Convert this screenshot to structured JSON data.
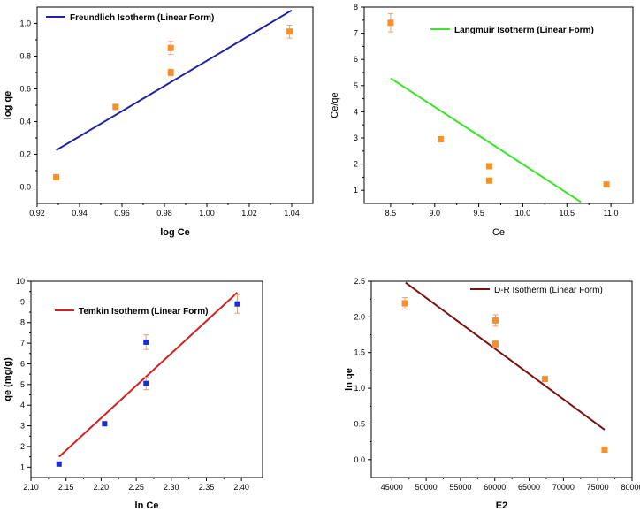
{
  "chart_data": [
    {
      "type": "scatter",
      "title": "",
      "xlabel": "log Ce",
      "ylabel": "log qe",
      "xlim": [
        0.92,
        1.05
      ],
      "ylim": [
        -0.1,
        1.1
      ],
      "x_ticks": [
        "0.92",
        "0.94",
        "0.96",
        "0.98",
        "1.00",
        "1.02",
        "1.04"
      ],
      "y_ticks": [
        "0.0",
        "0.2",
        "0.4",
        "0.6",
        "0.8",
        "1.0"
      ],
      "legend": "Freundlich Isotherm (Linear Form)",
      "legend_position": "top-left",
      "line_color": "#1f22a0",
      "marker_color": "#f5902a",
      "fit_line": {
        "x": [
          0.929,
          1.04
        ],
        "y": [
          0.225,
          1.08
        ]
      },
      "points": [
        {
          "x": 0.929,
          "y": 0.06,
          "err": 0.0
        },
        {
          "x": 0.957,
          "y": 0.49,
          "err": 0.015
        },
        {
          "x": 0.983,
          "y": 0.7,
          "err": 0.02
        },
        {
          "x": 0.983,
          "y": 0.85,
          "err": 0.04
        },
        {
          "x": 1.039,
          "y": 0.95,
          "err": 0.04
        }
      ]
    },
    {
      "type": "scatter",
      "title": "",
      "xlabel": "Ce",
      "ylabel": "Ce/qe",
      "xlim": [
        8.2,
        11.25
      ],
      "ylim": [
        0.5,
        8.0
      ],
      "x_ticks": [
        "8.5",
        "9.0",
        "9.5",
        "10.0",
        "10.5",
        "11.0"
      ],
      "y_ticks": [
        "1",
        "2",
        "3",
        "4",
        "5",
        "6",
        "7",
        "8"
      ],
      "legend": "Langmuir Isotherm (Linear Form)",
      "legend_position": "top-right",
      "line_color": "#3ce42c",
      "marker_color": "#f5902a",
      "fit_line": {
        "x": [
          8.5,
          10.66
        ],
        "y": [
          5.28,
          0.55
        ]
      },
      "points": [
        {
          "x": 8.5,
          "y": 7.4,
          "err": 0.35
        },
        {
          "x": 9.07,
          "y": 2.95,
          "err": 0.1
        },
        {
          "x": 9.62,
          "y": 1.92,
          "err": 0.06
        },
        {
          "x": 9.62,
          "y": 1.37,
          "err": 0.06
        },
        {
          "x": 10.95,
          "y": 1.22,
          "err": 0.0
        }
      ]
    },
    {
      "type": "scatter",
      "title": "",
      "xlabel": "ln Ce",
      "ylabel": "qe (mg/g)",
      "xlim": [
        2.1,
        2.43
      ],
      "ylim": [
        0.5,
        10.0
      ],
      "x_ticks": [
        "2.10",
        "2.15",
        "2.20",
        "2.25",
        "2.30",
        "2.35",
        "2.40"
      ],
      "y_ticks": [
        "1",
        "2",
        "3",
        "4",
        "5",
        "6",
        "7",
        "8",
        "9",
        "10"
      ],
      "legend": "Temkin Isotherm (Linear Form)",
      "legend_position": "top-left",
      "line_color": "#d42020",
      "marker_color": "#1a2fc8",
      "fit_line": {
        "x": [
          2.14,
          2.394
        ],
        "y": [
          1.5,
          9.45
        ]
      },
      "points": [
        {
          "x": 2.14,
          "y": 1.15,
          "err": 0.05
        },
        {
          "x": 2.205,
          "y": 3.1,
          "err": 0.1
        },
        {
          "x": 2.264,
          "y": 7.05,
          "err": 0.35
        },
        {
          "x": 2.264,
          "y": 5.05,
          "err": 0.3
        },
        {
          "x": 2.394,
          "y": 8.9,
          "err": 0.45
        }
      ]
    },
    {
      "type": "scatter",
      "title": "",
      "xlabel": "E2",
      "ylabel": "ln qe",
      "xlim": [
        42000,
        80000
      ],
      "ylim": [
        -0.25,
        2.5
      ],
      "x_ticks": [
        "45000",
        "50000",
        "55000",
        "60000",
        "65000",
        "70000",
        "75000",
        "80000"
      ],
      "y_ticks": [
        "0.0",
        "0.5",
        "1.0",
        "1.5",
        "2.0",
        "2.5"
      ],
      "legend": "D-R Isotherm (Linear Form)",
      "legend_position": "top-right",
      "line_color": "#7a1010",
      "marker_color": "#f5902a",
      "fit_line": {
        "x": [
          47000,
          76000
        ],
        "y": [
          2.48,
          0.42
        ]
      },
      "points": [
        {
          "x": 46900,
          "y": 2.19,
          "err": 0.08
        },
        {
          "x": 60100,
          "y": 1.95,
          "err": 0.08
        },
        {
          "x": 60100,
          "y": 1.62,
          "err": 0.05
        },
        {
          "x": 67300,
          "y": 1.13,
          "err": 0.02
        },
        {
          "x": 76000,
          "y": 0.14,
          "err": 0.0
        }
      ]
    }
  ]
}
